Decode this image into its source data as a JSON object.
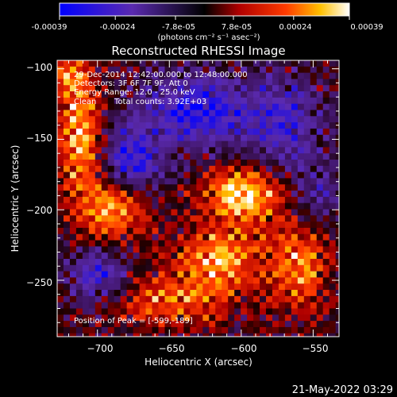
{
  "colorbar": {
    "tick_labels": [
      "-0.00039",
      "-0.00024",
      "-7.8e-05",
      "7.8e-05",
      "0.00024",
      "0.00039"
    ],
    "tick_values": [
      -0.00039,
      -0.00024,
      -7.8e-05,
      7.8e-05,
      0.00024,
      0.00039
    ],
    "range": [
      -0.00039,
      0.00039
    ],
    "unit_label": "(photons cm⁻² s⁻¹ asec⁻²)",
    "colors": [
      "#0000ff",
      "#5a2ab0",
      "#000000",
      "#b00000",
      "#ff3a00",
      "#ffc000",
      "#ffffff"
    ]
  },
  "chart_data": {
    "type": "heatmap",
    "title": "Reconstructed RHESSI Image",
    "xlabel": "Heliocentric X (arcsec)",
    "ylabel": "Heliocentric Y (arcsec)",
    "xlim": [
      -728,
      -532
    ],
    "ylim": [
      -290,
      -94
    ],
    "x_tick_labels": [
      "−700",
      "−650",
      "−600",
      "−550"
    ],
    "x_tick_values": [
      -700,
      -650,
      -600,
      -550
    ],
    "y_tick_labels": [
      "−100",
      "−150",
      "−200",
      "−250"
    ],
    "y_tick_values": [
      -100,
      -150,
      -200,
      -250
    ],
    "peak": [
      -599,
      -189
    ],
    "blobs": [
      {
        "x": -599,
        "y": -189,
        "amp": 1.0,
        "sx": 18,
        "sy": 14
      },
      {
        "x": -712,
        "y": -145,
        "amp": 0.85,
        "sx": 10,
        "sy": 28
      },
      {
        "x": -690,
        "y": -200,
        "amp": 0.8,
        "sx": 16,
        "sy": 16
      },
      {
        "x": -615,
        "y": -235,
        "amp": 0.75,
        "sx": 22,
        "sy": 16
      },
      {
        "x": -560,
        "y": -240,
        "amp": 0.65,
        "sx": 14,
        "sy": 22
      },
      {
        "x": -650,
        "y": -265,
        "amp": 0.55,
        "sx": 28,
        "sy": 12
      },
      {
        "x": -720,
        "y": -105,
        "amp": 0.55,
        "sx": 8,
        "sy": 8
      },
      {
        "x": -630,
        "y": -130,
        "amp": -0.85,
        "sx": 28,
        "sy": 18
      },
      {
        "x": -675,
        "y": -165,
        "amp": -0.8,
        "sx": 14,
        "sy": 16
      },
      {
        "x": -700,
        "y": -245,
        "amp": -0.7,
        "sx": 14,
        "sy": 14
      },
      {
        "x": -570,
        "y": -140,
        "amp": -0.6,
        "sx": 18,
        "sy": 24
      },
      {
        "x": -545,
        "y": -190,
        "amp": -0.45,
        "sx": 12,
        "sy": 14
      }
    ]
  },
  "annotations": {
    "time_range": "29-Dec-2014 12:42:00.000 to 12:48:00.000",
    "detectors": "Detectors: 3F 6F 7F 9F, Att 0",
    "energy_range": "Energy Range: 12.0 - 25.0 keV",
    "method": "Clean",
    "total_counts": "Total counts: 3.92E+03",
    "peak_position": "Position of Peak = [-599,-189]"
  },
  "timestamp": "21-May-2022 03:29"
}
